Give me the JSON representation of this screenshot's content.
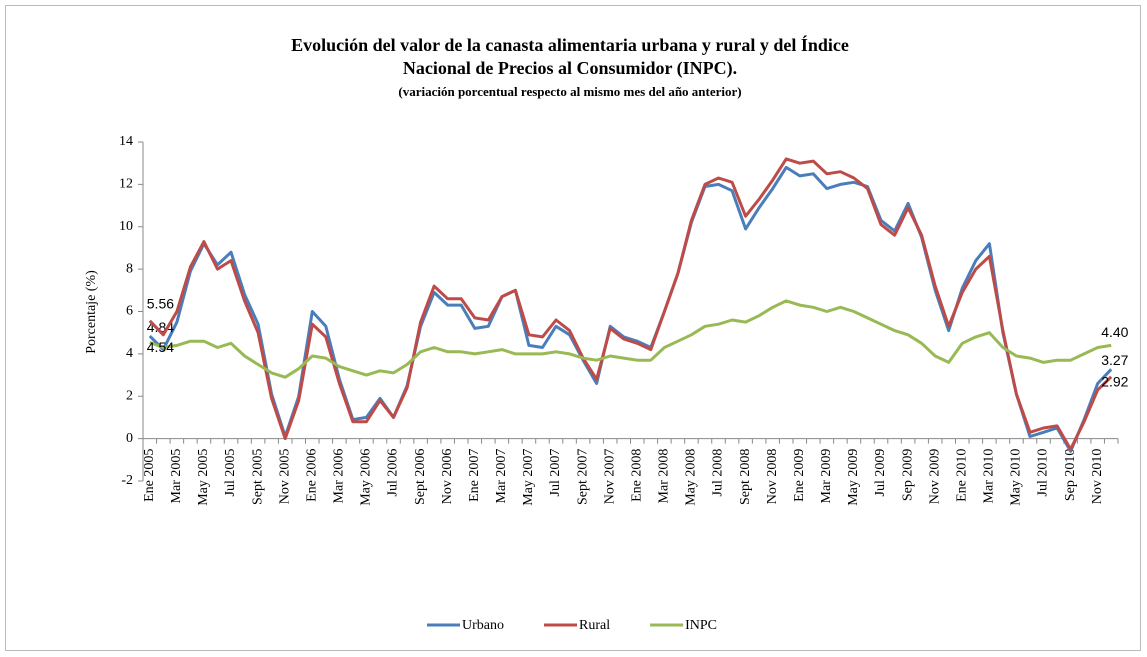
{
  "chart_data": {
    "type": "line",
    "title_lines": [
      "Evolución del valor de la canasta alimentaria urbana y rural y del Índice",
      "Nacional de Precios al Consumidor  (INPC)."
    ],
    "subtitle": "(variación porcentual respecto al mismo mes del año anterior)",
    "y_label": "Porcentaje (%)",
    "categories": [
      "Ene 2005",
      null,
      "Mar 2005",
      null,
      "May 2005",
      null,
      "Jul 2005",
      null,
      "Sept 2005",
      null,
      "Nov 2005",
      null,
      "Ene 2006",
      null,
      "Mar 2006",
      null,
      "May 2006",
      null,
      "Jul 2006",
      null,
      "Sept 2006",
      null,
      "Nov 2006",
      null,
      "Ene 2007",
      null,
      "Mar 2007",
      null,
      "May 2007",
      null,
      "Jul 2007",
      null,
      "Sept 2007",
      null,
      "Nov 2007",
      null,
      "Ene 2008",
      null,
      "Mar 2008",
      null,
      "May 2008",
      null,
      "Jul 2008",
      null,
      "Sept 2008",
      null,
      "Nov 2008",
      null,
      "Ene 2009",
      null,
      "Mar 2009",
      null,
      "May 2009",
      null,
      "Jul 2009",
      null,
      "Sep 2009",
      null,
      "Nov 2009",
      null,
      "Ene 2010",
      null,
      "Mar 2010",
      null,
      "May 2010",
      null,
      "Jul 2010",
      null,
      "Sep 2010",
      null,
      "Nov 2010",
      null
    ],
    "series": [
      {
        "name": "Urbano",
        "color": "#4a7ebb",
        "values": [
          4.84,
          4.2,
          5.5,
          7.9,
          9.2,
          8.2,
          8.8,
          6.8,
          5.4,
          2.1,
          0.1,
          2.0,
          6.0,
          5.3,
          2.8,
          0.9,
          1.0,
          1.9,
          1.0,
          2.5,
          5.3,
          6.9,
          6.3,
          6.3,
          5.2,
          5.3,
          6.7,
          7.0,
          4.4,
          4.3,
          5.3,
          4.9,
          3.7,
          2.6,
          5.3,
          4.8,
          4.6,
          4.3,
          6.0,
          7.8,
          10.2,
          11.9,
          12.0,
          11.7,
          9.9,
          10.9,
          11.8,
          12.8,
          12.4,
          12.5,
          11.8,
          12.0,
          12.1,
          11.9,
          10.3,
          9.8,
          11.1,
          9.5,
          7.0,
          5.1,
          7.1,
          8.4,
          9.2,
          5.0,
          2.1,
          0.1,
          0.3,
          0.5,
          -0.6,
          0.9,
          2.6,
          3.27
        ],
        "value_labels": {
          "0": "4.84",
          "71": "3.27"
        }
      },
      {
        "name": "Rural",
        "color": "#be4b48",
        "values": [
          5.56,
          4.9,
          6.0,
          8.1,
          9.3,
          8.0,
          8.4,
          6.5,
          5.0,
          1.9,
          0.0,
          1.8,
          5.4,
          4.8,
          2.6,
          0.8,
          0.8,
          1.8,
          1.0,
          2.4,
          5.5,
          7.2,
          6.6,
          6.6,
          5.7,
          5.6,
          6.7,
          7.0,
          4.9,
          4.8,
          5.6,
          5.1,
          3.8,
          2.8,
          5.2,
          4.7,
          4.5,
          4.2,
          6.0,
          7.8,
          10.3,
          12.0,
          12.3,
          12.1,
          10.5,
          11.3,
          12.2,
          13.2,
          13.0,
          13.1,
          12.5,
          12.6,
          12.3,
          11.8,
          10.1,
          9.6,
          10.9,
          9.6,
          7.2,
          5.3,
          6.9,
          8.0,
          8.6,
          5.1,
          2.1,
          0.3,
          0.5,
          0.6,
          -0.5,
          0.8,
          2.3,
          2.92
        ],
        "value_labels": {
          "0": "5.56",
          "71": "2.92"
        }
      },
      {
        "name": "INPC",
        "color": "#98b954",
        "values": [
          4.54,
          4.3,
          4.4,
          4.6,
          4.6,
          4.3,
          4.5,
          3.9,
          3.5,
          3.1,
          2.9,
          3.3,
          3.9,
          3.8,
          3.4,
          3.2,
          3.0,
          3.2,
          3.1,
          3.5,
          4.1,
          4.3,
          4.1,
          4.1,
          4.0,
          4.1,
          4.2,
          4.0,
          4.0,
          4.0,
          4.1,
          4.0,
          3.8,
          3.7,
          3.9,
          3.8,
          3.7,
          3.7,
          4.3,
          4.6,
          4.9,
          5.3,
          5.4,
          5.6,
          5.5,
          5.8,
          6.2,
          6.5,
          6.3,
          6.2,
          6.0,
          6.2,
          6.0,
          5.7,
          5.4,
          5.1,
          4.9,
          4.5,
          3.9,
          3.6,
          4.5,
          4.8,
          5.0,
          4.3,
          3.9,
          3.8,
          3.6,
          3.7,
          3.7,
          4.0,
          4.3,
          4.4
        ],
        "value_labels": {
          "0": "4.54",
          "71": "4.40"
        }
      }
    ],
    "ylim": [
      -2,
      14
    ],
    "yticks": [
      -2,
      0,
      2,
      4,
      6,
      8,
      10,
      12,
      14
    ],
    "grid": false,
    "legend": "bottom"
  }
}
